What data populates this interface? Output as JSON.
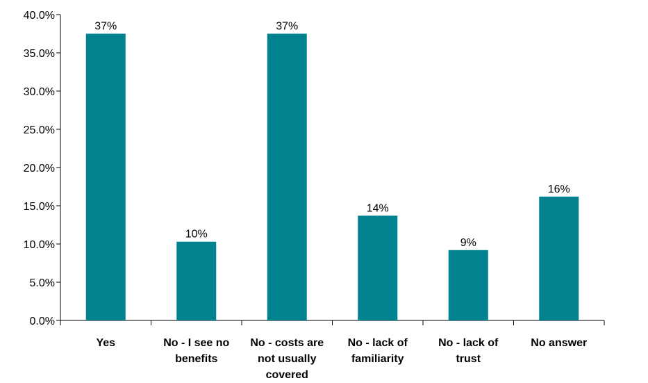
{
  "chart_data": {
    "type": "bar",
    "categories": [
      [
        "Yes"
      ],
      [
        "No - I see no",
        "benefits"
      ],
      [
        "No - costs are",
        "not usually",
        "covered"
      ],
      [
        "No - lack of",
        "familiarity"
      ],
      [
        "No - lack of",
        "trust"
      ],
      [
        "No answer"
      ]
    ],
    "values": [
      37.5,
      10.3,
      37.5,
      13.7,
      9.2,
      16.2
    ],
    "data_labels": [
      "37%",
      "10%",
      "37%",
      "14%",
      "9%",
      "16%"
    ],
    "y_ticks": [
      "0.0%",
      "5.0%",
      "10.0%",
      "15.0%",
      "20.0%",
      "25.0%",
      "30.0%",
      "35.0%",
      "40.0%"
    ],
    "ylim": [
      0,
      40
    ],
    "grid": false,
    "legend": "none",
    "bar_color": "#00838F"
  }
}
